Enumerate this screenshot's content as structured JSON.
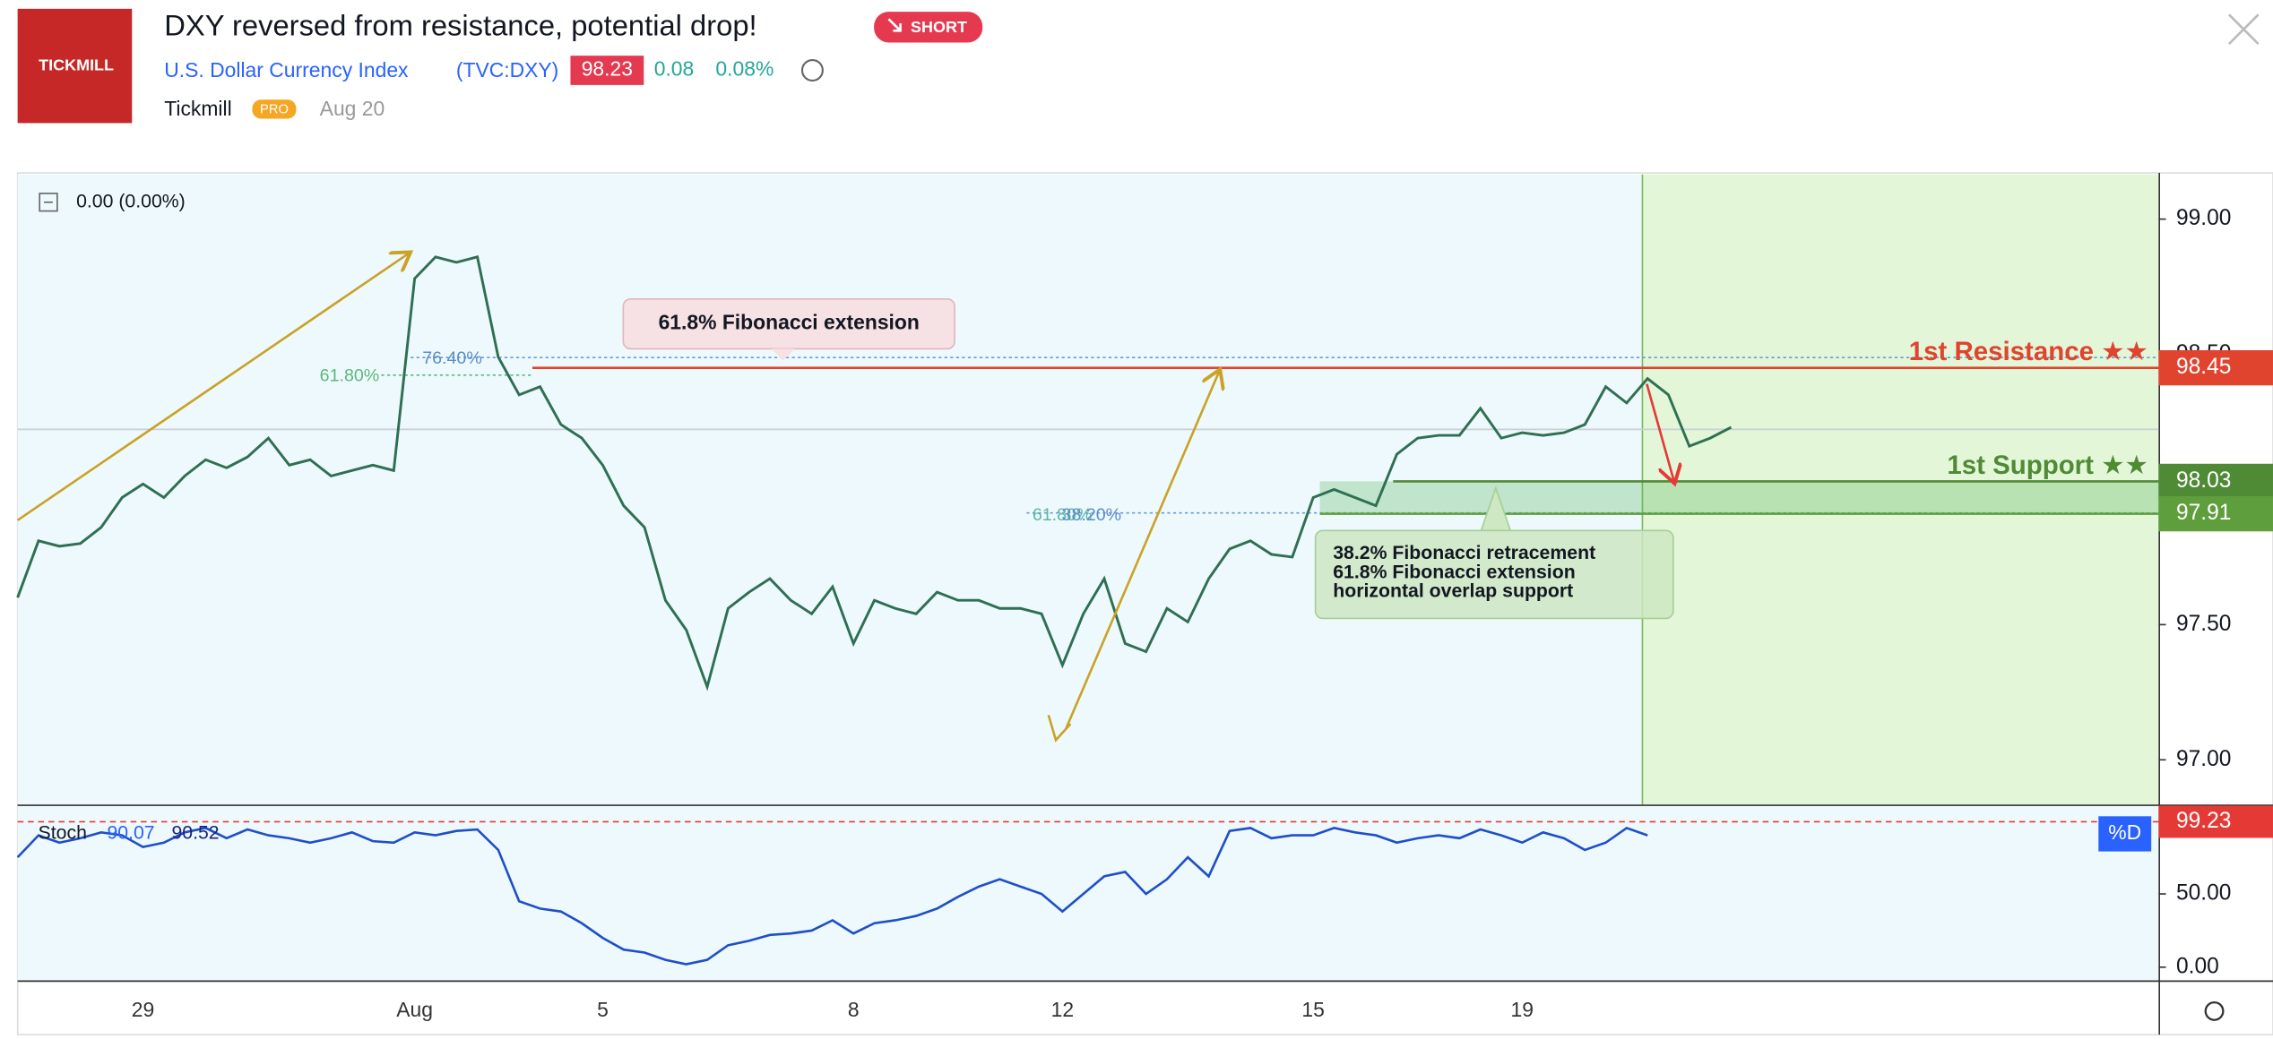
{
  "header": {
    "logo": "TICKMILL",
    "title": "DXY reversed from resistance, potential drop!",
    "badge": "SHORT",
    "symbol_name": "U.S. Dollar Currency Index",
    "symbol": "(TVC:DXY)",
    "price": "98.23",
    "change": "0.08",
    "change_percent": "0.08%",
    "author": "Tickmill",
    "author_badge": "PRO",
    "date": "Aug 20"
  },
  "chart_data": [
    {
      "type": "line",
      "legend": "0.00 (0.00%)",
      "categories": [
        null,
        null,
        null,
        null,
        null,
        null,
        "29",
        null,
        null,
        null,
        null,
        null,
        null,
        null,
        null,
        null,
        null,
        null,
        null,
        "Aug",
        null,
        null,
        null,
        null,
        null,
        null,
        null,
        null,
        "5",
        null,
        null,
        null,
        null,
        null,
        null,
        null,
        null,
        null,
        null,
        null,
        "8",
        null,
        null,
        null,
        null,
        null,
        null,
        null,
        null,
        null,
        "12",
        null,
        null,
        null,
        null,
        null,
        null,
        null,
        null,
        null,
        null,
        null,
        "15",
        null,
        null,
        null,
        null,
        null,
        null,
        null,
        null,
        null,
        "19",
        null,
        null,
        null,
        null,
        null,
        null,
        null,
        null,
        null,
        null
      ],
      "values": [
        97.6,
        97.81,
        97.79,
        97.8,
        97.86,
        97.97,
        98.02,
        97.97,
        98.05,
        98.11,
        98.08,
        98.12,
        98.19,
        98.09,
        98.11,
        98.05,
        98.07,
        98.09,
        98.07,
        98.78,
        98.86,
        98.84,
        98.86,
        98.49,
        98.35,
        98.38,
        98.24,
        98.19,
        98.09,
        97.94,
        97.86,
        97.59,
        97.48,
        97.27,
        97.56,
        97.62,
        97.67,
        97.59,
        97.54,
        97.64,
        97.43,
        97.59,
        97.56,
        97.54,
        97.62,
        97.59,
        97.59,
        97.56,
        97.56,
        97.54,
        97.35,
        97.54,
        97.67,
        97.43,
        97.4,
        97.56,
        97.51,
        97.67,
        97.78,
        97.81,
        97.76,
        97.75,
        97.97,
        98.0,
        97.97,
        97.94,
        98.13,
        98.19,
        98.2,
        98.2,
        98.3,
        98.19,
        98.21,
        98.2,
        98.21,
        98.24,
        98.38,
        98.32,
        98.41,
        98.35,
        98.16,
        98.19,
        98.23
      ],
      "color": "#2f6f52",
      "ylim": [
        96.84,
        99.16
      ],
      "yticks": [
        {
          "value": 99,
          "label": "99.00"
        },
        {
          "value": 98.5,
          "label": "98.50"
        },
        {
          "value": 97.5,
          "label": "97.50"
        },
        {
          "value": 97,
          "label": "97.00"
        }
      ],
      "levels": [
        {
          "name": "1st Resistance ★★",
          "value": 98.45,
          "color": "#e0442f"
        },
        {
          "name": "1st Support ★★",
          "value": 98.03,
          "color": "#4f8a35"
        },
        {
          "value": 97.91,
          "color": "#5f9e3c"
        }
      ],
      "fib_labels": [
        "61.80%",
        "76.40%",
        "61.80%",
        "38.20%"
      ],
      "annotations": [
        "61.8% Fibonacci extension",
        [
          "38.2% Fibonacci retracement",
          "61.8% Fibonacci extension",
          "horizontal overlap support"
        ]
      ]
    },
    {
      "type": "line",
      "title": "Stoch",
      "readout": [
        90.07,
        90.52
      ],
      "series_label": "%D",
      "values": [
        75,
        90,
        85,
        88,
        92,
        90,
        82,
        85,
        92,
        95,
        88,
        94,
        90,
        88,
        85,
        88,
        92,
        86,
        85,
        92,
        90,
        93,
        94,
        80,
        45,
        40,
        38,
        30,
        20,
        12,
        10,
        5,
        2,
        5,
        15,
        18,
        22,
        23,
        25,
        32,
        23,
        30,
        32,
        35,
        40,
        48,
        55,
        60,
        55,
        50,
        38,
        50,
        62,
        65,
        50,
        60,
        75,
        62,
        93,
        95,
        88,
        90,
        90,
        95,
        92,
        90,
        85,
        88,
        90,
        88,
        94,
        90,
        85,
        92,
        88,
        80,
        85,
        95,
        90,
        null,
        null,
        null,
        null
      ],
      "color": "#1f4fc8",
      "ylim": [
        -8,
        110
      ],
      "yticks": [
        {
          "value": 50,
          "label": "50.00"
        },
        {
          "value": 0,
          "label": "0.00"
        }
      ],
      "reference_line": {
        "value": 99.23,
        "color": "#e53935"
      }
    }
  ]
}
